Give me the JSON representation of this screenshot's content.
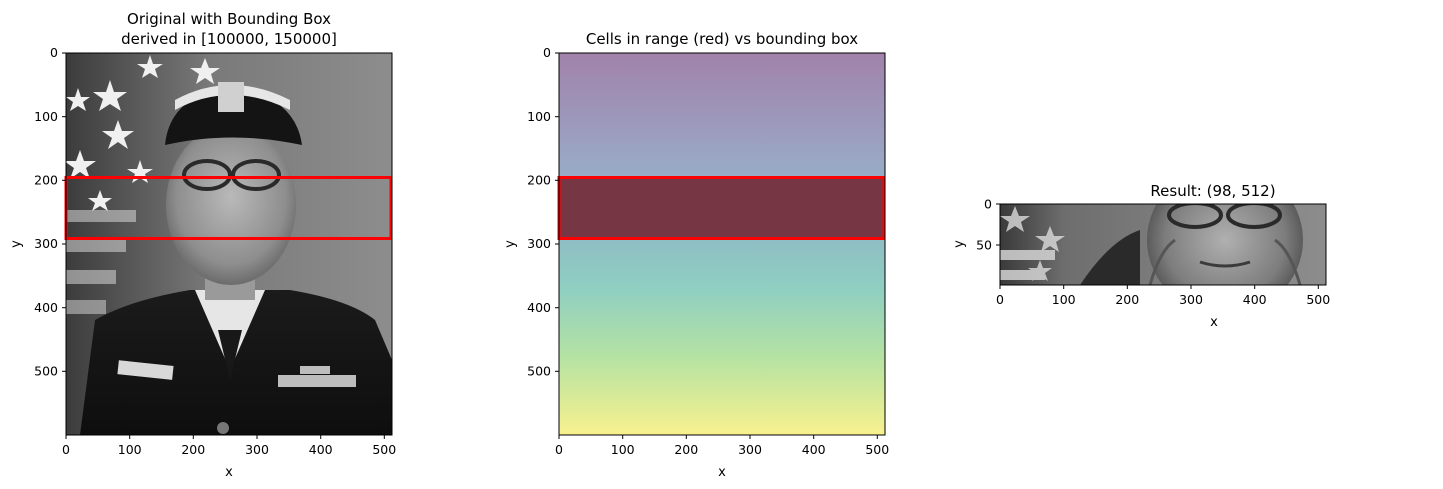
{
  "figure": {
    "panels": [
      {
        "id": "original",
        "title_lines": [
          "Original with Bounding Box",
          "derived in [100000, 150000]"
        ],
        "xlabel": "x",
        "ylabel": "y",
        "image": "grayscale portrait photo of an officer in naval uniform and cap, flag in background",
        "bbox_label_color": "#ff0000"
      },
      {
        "id": "cells",
        "title_lines": [
          "Cells in range (red) vs bounding box"
        ],
        "xlabel": "x",
        "ylabel": "y",
        "image": "vertical viridis-like gradient (purple top to yellow bottom), semi-transparent",
        "highlight_color": "#800000"
      },
      {
        "id": "result",
        "title_lines": [
          "Result: (98, 512)"
        ],
        "xlabel": "x",
        "ylabel": "y",
        "image": "cropped grayscale strip of the portrait (eyes and mouth region)"
      }
    ]
  },
  "chart_data": [
    {
      "type": "heatmap",
      "title": "Original with Bounding Box\nderived in [100000, 150000]",
      "xlabel": "x",
      "ylabel": "y",
      "xlim": [
        0,
        512
      ],
      "ylim": [
        600,
        0
      ],
      "xticks": [
        0,
        100,
        200,
        300,
        400,
        500
      ],
      "yticks": [
        0,
        100,
        200,
        300,
        400,
        500
      ],
      "bounding_box": {
        "x0": 0,
        "x1": 511,
        "y0": 195,
        "y1": 292,
        "color": "#ff0000"
      }
    },
    {
      "type": "heatmap",
      "title": "Cells in range (red) vs bounding box",
      "xlabel": "x",
      "ylabel": "y",
      "xlim": [
        0,
        512
      ],
      "ylim": [
        600,
        0
      ],
      "xticks": [
        0,
        100,
        200,
        300,
        400,
        500
      ],
      "yticks": [
        0,
        100,
        200,
        300,
        400,
        500
      ],
      "colormap": [
        "#440154",
        "#3b528b",
        "#21918c",
        "#5ec962",
        "#fde725"
      ],
      "cells_in_range": {
        "y0": 195,
        "y1": 292
      },
      "bounding_box": {
        "x0": 0,
        "x1": 511,
        "y0": 195,
        "y1": 292,
        "color": "#ff0000"
      }
    },
    {
      "type": "heatmap",
      "title": "Result: (98, 512)",
      "xlabel": "x",
      "ylabel": "y",
      "xlim": [
        0,
        512
      ],
      "ylim": [
        98,
        0
      ],
      "xticks": [
        0,
        100,
        200,
        300,
        400,
        500
      ],
      "yticks": [
        0,
        50
      ]
    }
  ]
}
